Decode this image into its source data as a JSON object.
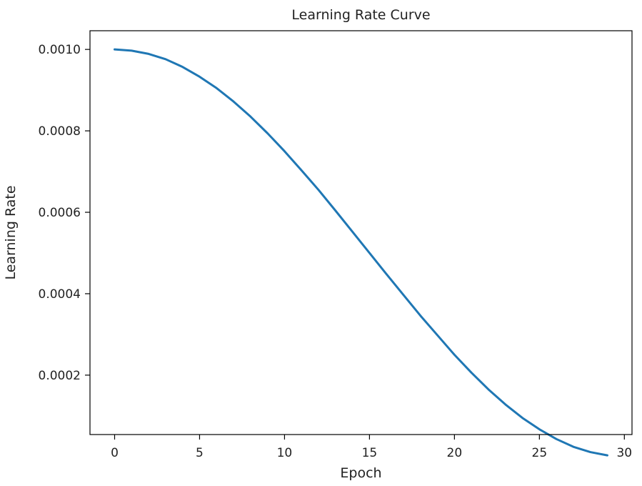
{
  "chart_data": {
    "type": "line",
    "title": "Learning Rate Curve",
    "xlabel": "Epoch",
    "ylabel": "Learning Rate",
    "xlim": [
      -1.45,
      30.45
    ],
    "ylim": [
      5.41e-05,
      0.0010459
    ],
    "xticks": [
      0,
      5,
      10,
      15,
      20,
      25,
      30
    ],
    "xtick_labels": [
      "0",
      "5",
      "10",
      "15",
      "20",
      "25",
      "30"
    ],
    "yticks": [
      0.0002,
      0.0004,
      0.0006,
      0.0008,
      0.001
    ],
    "ytick_labels": [
      "0.0002",
      "0.0004",
      "0.0006",
      "0.0008",
      "0.0010"
    ],
    "grid": false,
    "series": [
      {
        "color": "#1f77b4",
        "x": [
          0,
          1,
          2,
          3,
          4,
          5,
          6,
          7,
          8,
          9,
          10,
          11,
          12,
          13,
          14,
          15,
          16,
          17,
          18,
          19,
          20,
          21,
          22,
          23,
          24,
          25,
          26,
          27,
          28,
          29
        ],
        "y": [
          0.001,
          0.000997,
          0.000989,
          0.000976,
          0.000957,
          0.000933,
          0.000905,
          0.000872,
          0.000835,
          0.000794,
          0.00075,
          0.000703,
          0.000655,
          0.000604,
          0.000552,
          0.0005,
          0.000448,
          0.000397,
          0.000346,
          0.000298,
          0.00025,
          0.000206,
          0.000165,
          0.000128,
          9.5e-05,
          6.7e-05,
          4.3e-05,
          2.4e-05,
          1.1e-05,
          3e-06
        ]
      }
    ]
  }
}
